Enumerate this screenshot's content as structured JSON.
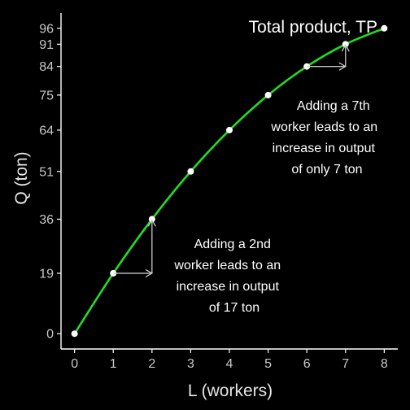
{
  "colors": {
    "background": "#000000",
    "axis": "#ffffff",
    "curve": "#22dd22",
    "points": "#ffffff",
    "arrows": "#c8c8c8",
    "text": "#ffffff",
    "tick_text": "#c8c8c8"
  },
  "chart_data": {
    "type": "line",
    "title": "Total product, TP",
    "xlabel": "L (workers)",
    "ylabel": "Q (ton)",
    "x": [
      0,
      1,
      2,
      3,
      4,
      5,
      6,
      7,
      8
    ],
    "series": [
      {
        "name": "Total product, TP",
        "values": [
          0,
          19,
          36,
          51,
          64,
          75,
          84,
          91,
          96
        ]
      }
    ],
    "x_ticks": [
      0,
      1,
      2,
      3,
      4,
      5,
      6,
      7,
      8
    ],
    "y_ticks": [
      0,
      19,
      36,
      51,
      64,
      75,
      84,
      91,
      96
    ],
    "xlim": [
      -0.35,
      8.35
    ],
    "ylim": [
      -4.8,
      100.8
    ],
    "grid": false,
    "annotations": [
      {
        "id": "second-worker",
        "lines": [
          "Adding a 2nd",
          "worker leads to an",
          "increase in output",
          "of 17 ton"
        ],
        "arrow_from": [
          1,
          19
        ],
        "arrow_corner": [
          2,
          19
        ],
        "arrow_to": [
          2,
          36
        ]
      },
      {
        "id": "seventh-worker",
        "lines": [
          "Adding a 7th",
          "worker leads to an",
          "increase in output",
          "of only 7 ton"
        ],
        "arrow_from": [
          6,
          84
        ],
        "arrow_corner": [
          7,
          84
        ],
        "arrow_to": [
          7,
          91
        ]
      }
    ]
  }
}
